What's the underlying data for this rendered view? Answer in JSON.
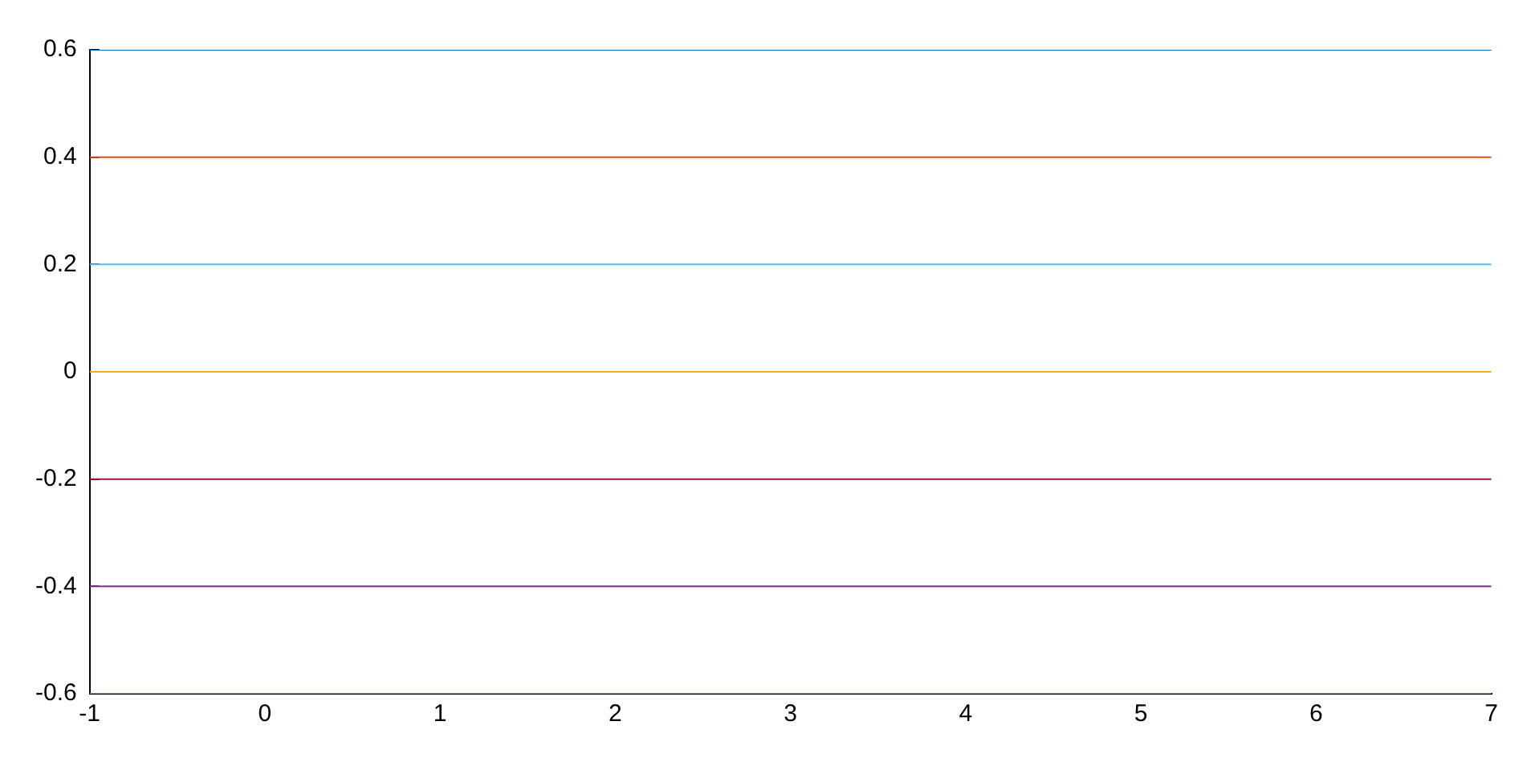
{
  "chart_data": {
    "type": "line",
    "x": [
      -1,
      7
    ],
    "xlim": [
      -1,
      7
    ],
    "xticks": [
      -1,
      0,
      1,
      2,
      3,
      4,
      5,
      6,
      7
    ],
    "ylim": [
      -0.6,
      0.6
    ],
    "yticks": [
      -0.6,
      -0.4,
      -0.2,
      0,
      0.2,
      0.4,
      0.6
    ],
    "grid": false,
    "marker": "none",
    "line_style": "solid",
    "series": [
      {
        "color": "#0072bd",
        "values": [
          0.6,
          0.6
        ]
      },
      {
        "color": "#d95319",
        "values": [
          0.4,
          0.4
        ]
      },
      {
        "color": "#4dbeee",
        "values": [
          0.2,
          0.2
        ]
      },
      {
        "color": "#edb120",
        "values": [
          0,
          0
        ]
      },
      {
        "color": "#a2142f",
        "values": [
          -0.2,
          -0.2
        ]
      },
      {
        "color": "#7e2f8e",
        "values": [
          -0.4,
          -0.4
        ]
      },
      {
        "color": "#77ac30",
        "values": [
          -0.6,
          -0.6
        ]
      }
    ]
  }
}
